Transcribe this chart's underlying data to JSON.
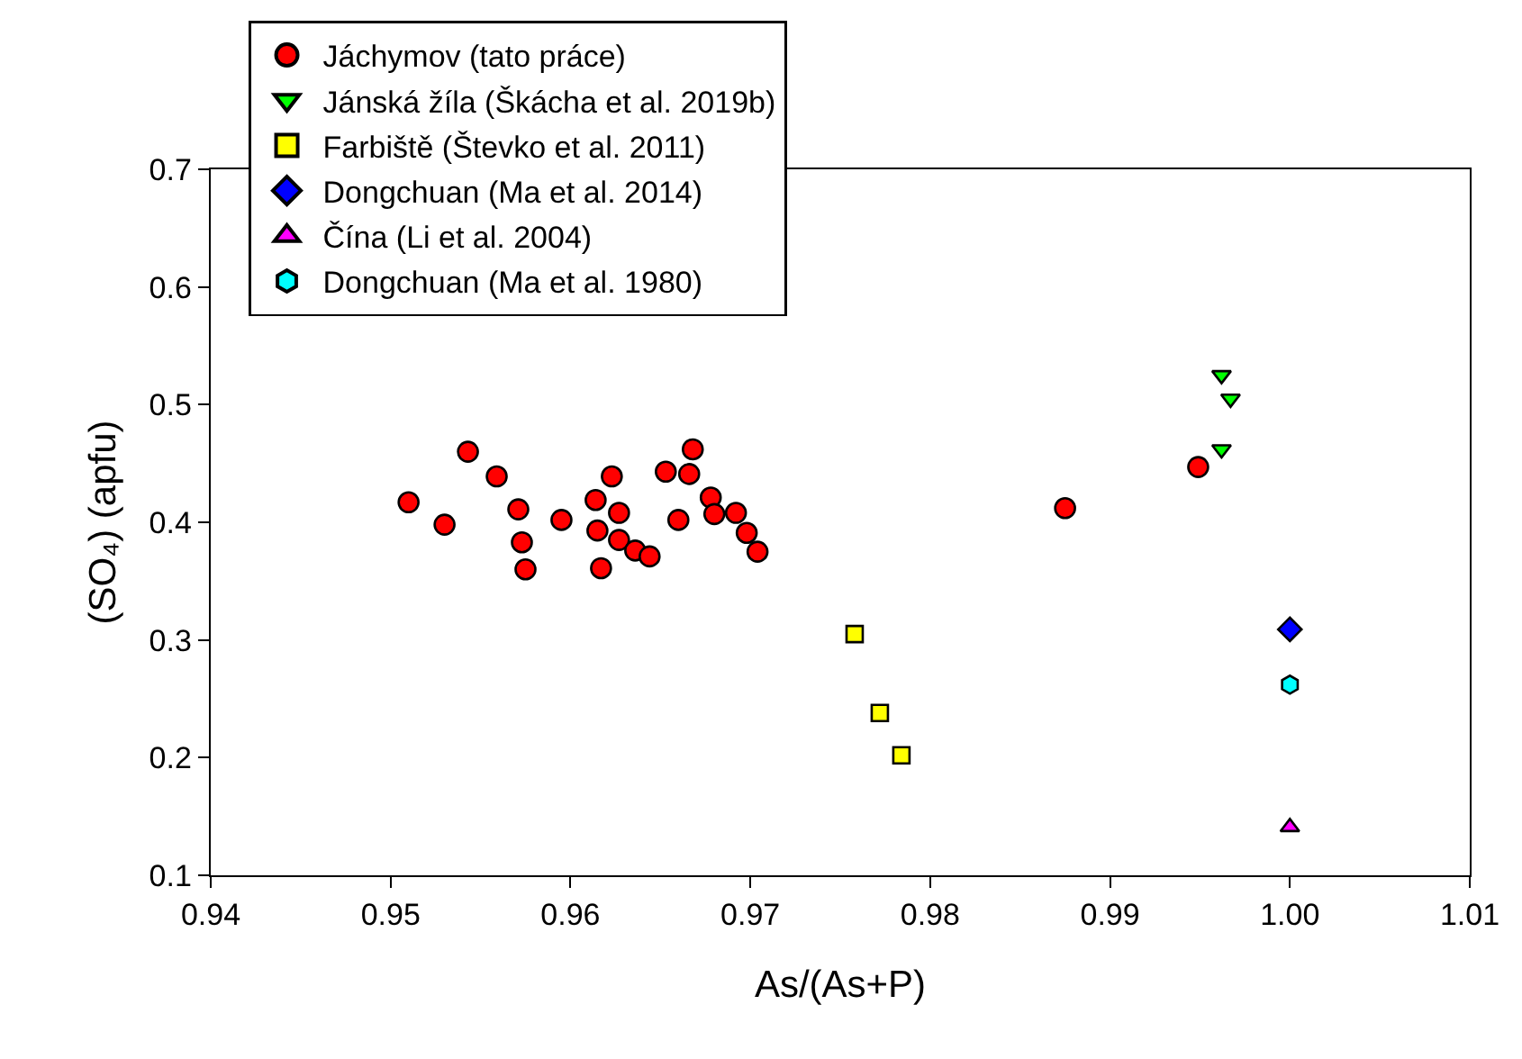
{
  "chart_data": {
    "type": "scatter",
    "xlabel": "As/(As+P)",
    "ylabel": "(SO₄) (apfu)",
    "xlim": [
      0.94,
      1.01
    ],
    "xticks": [
      0.94,
      0.95,
      0.96,
      0.97,
      0.98,
      0.99,
      {
        "value": 1.0,
        "label": "1.00"
      },
      1.01
    ],
    "ylim": [
      0.1,
      0.7
    ],
    "yticks": [
      0.1,
      0.2,
      0.3,
      0.4,
      0.5,
      0.6,
      0.7
    ],
    "legend": "top left",
    "series": [
      {
        "name": "Jáchymov (tato práce)",
        "color": "#ff0000",
        "marker": "circle",
        "x": [
          0.951,
          0.953,
          0.9543,
          0.9559,
          0.9571,
          0.9573,
          0.9575,
          0.9595,
          0.9614,
          0.9615,
          0.9617,
          0.9623,
          0.9627,
          0.9627,
          0.9636,
          0.9644,
          0.9653,
          0.966,
          0.9666,
          0.9668,
          0.9678,
          0.968,
          0.9692,
          0.9698,
          0.9704,
          0.9875,
          0.9949
        ],
        "values": [
          0.417,
          0.398,
          0.46,
          0.439,
          0.411,
          0.383,
          0.36,
          0.402,
          0.419,
          0.393,
          0.361,
          0.439,
          0.408,
          0.385,
          0.376,
          0.371,
          0.443,
          0.402,
          0.441,
          0.462,
          0.421,
          0.407,
          0.408,
          0.391,
          0.375,
          0.412,
          0.447
        ]
      },
      {
        "name": "Jánská žíla (Škácha et al. 2019b)",
        "color": "#00ff00",
        "marker": "triangle-down",
        "x": [
          0.9962,
          0.9967,
          0.9962
        ],
        "values": [
          0.525,
          0.505,
          0.462
        ]
      },
      {
        "name": "Farbiště (Števko et al. 2011)",
        "color": "#ffff00",
        "marker": "square",
        "x": [
          0.9758,
          0.9772,
          0.9784
        ],
        "values": [
          0.305,
          0.238,
          0.202
        ]
      },
      {
        "name": "Dongchuan (Ma et al. 2014)",
        "color": "#0000ff",
        "marker": "diamond",
        "x": [
          1.0
        ],
        "values": [
          0.309
        ]
      },
      {
        "name": "Čína (Li et al. 2004)",
        "color": "#ff00ff",
        "marker": "triangle-up",
        "x": [
          1.0
        ],
        "values": [
          0.141
        ]
      },
      {
        "name": "Dongchuan (Ma et al. 1980)",
        "color": "#00ffff",
        "x": [
          1.0
        ],
        "values": [
          0.262
        ]
      }
    ]
  }
}
